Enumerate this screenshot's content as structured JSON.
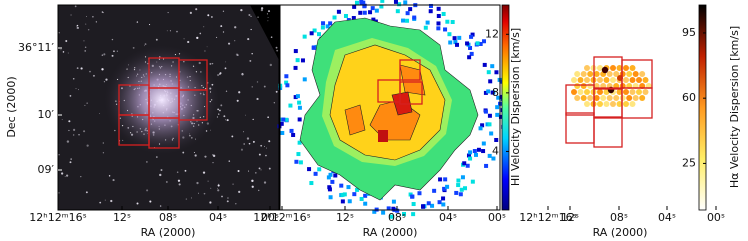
{
  "panels": [
    {
      "x_label": "RA (2000)",
      "x_ticks": [
        "12ʰ12ᵐ16ˢ",
        "12ˢ",
        "08ˢ",
        "04ˢ",
        "00ˢ"
      ],
      "y_label": "Dec (2000)",
      "y_ticks": [
        "36°11′",
        "10′",
        "09′"
      ]
    },
    {
      "x_label": "RA (2000)",
      "x_ticks": [
        "12ʰ12ᵐ16ˢ",
        "12ˢ",
        "08ˢ",
        "04ˢ",
        "00ˢ"
      ],
      "colorbar": {
        "label": "HI Velocity Dispersion [km/s]",
        "range": [
          0,
          14
        ],
        "ticks": [
          4,
          8,
          12
        ]
      }
    },
    {
      "x_label": "RA (2000)",
      "x_ticks": [
        "12ʰ12ᵐ16ˢ",
        "12ˢ",
        "08ˢ",
        "04ˢ",
        "00ˢ"
      ],
      "colorbar": {
        "label": "Hα Velocity Dispersion [km/s]",
        "range": [
          0,
          110
        ],
        "ticks": [
          25,
          60,
          95
        ]
      }
    }
  ]
}
